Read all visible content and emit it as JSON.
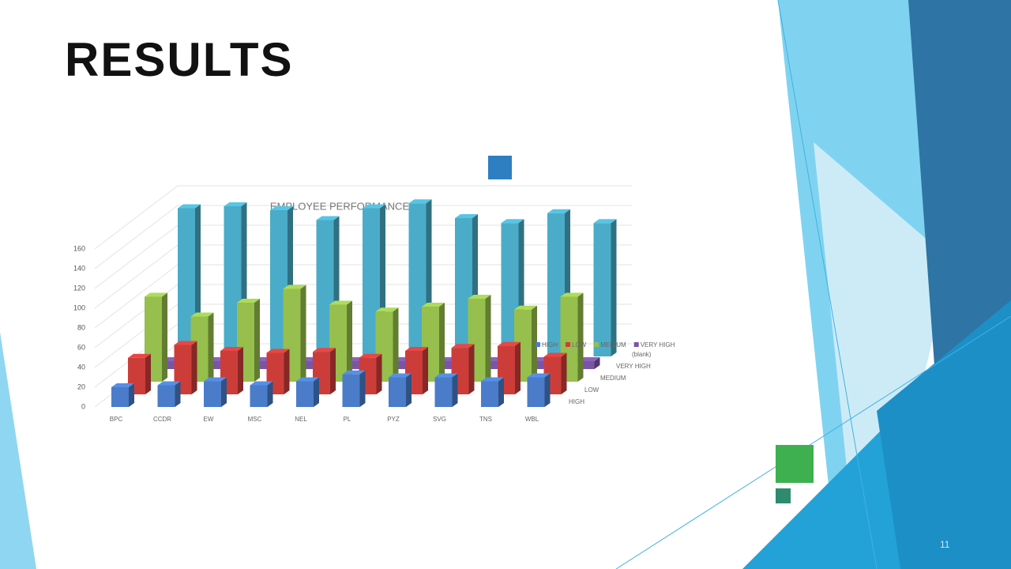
{
  "slide": {
    "title": "RESULTS",
    "page_number": "11"
  },
  "chart_data": {
    "type": "bar3d",
    "title": "EMPLOYEE PERFORMANCE",
    "categories": [
      "BPC",
      "CCDR",
      "EW",
      "MSC",
      "NEL",
      "PL",
      "PYZ",
      "SVG",
      "TNS",
      "WBL"
    ],
    "series": [
      {
        "name": "HIGH",
        "color": "#4a7cc9",
        "values": [
          20,
          22,
          26,
          22,
          26,
          33,
          30,
          30,
          26,
          30
        ]
      },
      {
        "name": "LOW",
        "color": "#cc3d3a",
        "values": [
          37,
          50,
          44,
          42,
          43,
          37,
          44,
          47,
          49,
          38
        ]
      },
      {
        "name": "MEDIUM",
        "color": "#96bf4d",
        "values": [
          86,
          66,
          80,
          94,
          78,
          71,
          76,
          84,
          73,
          86
        ]
      },
      {
        "name": "VERY HIGH",
        "color": "#7a55a6",
        "values": [
          8,
          8,
          8,
          8,
          8,
          8,
          8,
          8,
          8,
          8
        ]
      },
      {
        "name": "(blank)",
        "color": "#4aacc8",
        "values": [
          150,
          152,
          148,
          138,
          150,
          155,
          140,
          135,
          145,
          135
        ]
      }
    ],
    "ylim": [
      0,
      180
    ],
    "yticks": [
      0,
      20,
      40,
      60,
      80,
      100,
      120,
      140,
      160
    ],
    "grid": true
  }
}
